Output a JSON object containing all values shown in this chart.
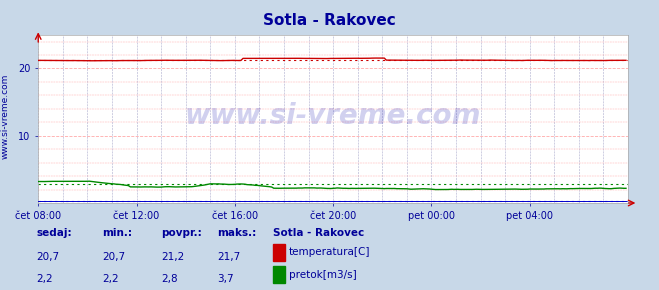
{
  "title": "Sotla - Rakovec",
  "title_color": "#000099",
  "bg_color": "#c8d8e8",
  "plot_bg_color": "#ffffff",
  "grid_color_h": "#ffaaaa",
  "grid_color_v": "#aaaacc",
  "yticks": [
    10,
    20
  ],
  "ylim": [
    0,
    25
  ],
  "xtick_labels": [
    "čet 08:00",
    "čet 12:00",
    "čet 16:00",
    "čet 20:00",
    "pet 00:00",
    "pet 04:00"
  ],
  "temp_avg": 21.2,
  "temp_min": 20.7,
  "temp_max": 21.7,
  "temp_curr": 20.7,
  "flow_avg": 2.8,
  "flow_min": 2.2,
  "flow_max": 3.7,
  "flow_curr": 2.2,
  "temp_color": "#cc0000",
  "flow_color": "#008800",
  "height_color": "#0000cc",
  "watermark_color": "#0000aa",
  "label_color": "#000099",
  "value_color": "#000099",
  "footer_title": "Sotla - Rakovec",
  "legend_temp": "temperatura[C]",
  "legend_flow": "pretok[m3/s]",
  "sedaj_label": "sedaj:",
  "min_label": "min.:",
  "povpr_label": "povpr.:",
  "maks_label": "maks.:"
}
